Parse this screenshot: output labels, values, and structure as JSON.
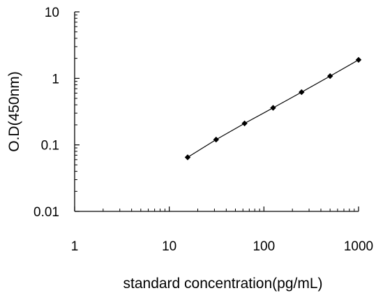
{
  "chart_data": {
    "type": "scatter",
    "title": "",
    "xlabel": "standard concentration(pg/mL)",
    "ylabel": "O.D(450nm)",
    "x_scale": "log",
    "y_scale": "log",
    "xlim": [
      1,
      1000
    ],
    "ylim": [
      0.01,
      10
    ],
    "x_ticks": [
      "1",
      "10",
      "100",
      "1000"
    ],
    "y_ticks": [
      "0.01",
      "0.1",
      "1",
      "10"
    ],
    "grid": false,
    "legend": "none",
    "series": [
      {
        "x": [
          15.625,
          31.25,
          62.5,
          125,
          250,
          500,
          1000
        ],
        "y": [
          0.065,
          0.12,
          0.21,
          0.36,
          0.62,
          1.08,
          1.9
        ],
        "line": true,
        "marker": "diamond"
      }
    ],
    "colors": {
      "line": "#000000",
      "marker": "#000000"
    }
  }
}
